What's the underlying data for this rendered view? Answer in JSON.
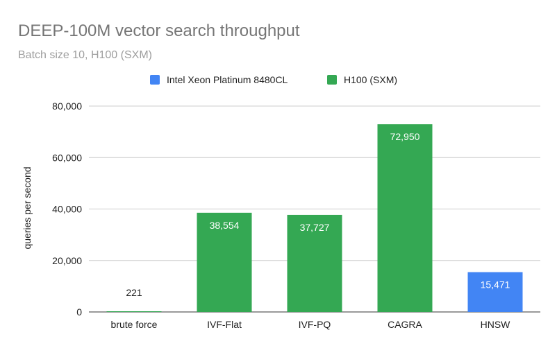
{
  "chart_data": {
    "type": "bar",
    "title": "DEEP-100M vector search throughput",
    "subtitle": "Batch size 10, H100 (SXM)",
    "xlabel": "",
    "ylabel": "queries per second",
    "ylim": [
      0,
      80000
    ],
    "yticks": [
      0,
      20000,
      40000,
      60000,
      80000
    ],
    "ytick_labels": [
      "0",
      "20,000",
      "40,000",
      "60,000",
      "80,000"
    ],
    "grid": true,
    "legend_position": "top",
    "categories": [
      "brute force",
      "IVF-Flat",
      "IVF-PQ",
      "CAGRA",
      "HNSW"
    ],
    "series": [
      {
        "name": "Intel Xeon Platinum 8480CL",
        "color": "#4285f4",
        "values": [
          null,
          null,
          null,
          null,
          15471
        ],
        "labels": [
          "",
          "",
          "",
          "",
          "15,471"
        ]
      },
      {
        "name": "H100 (SXM)",
        "color": "#34a853",
        "values": [
          221,
          38554,
          37727,
          72950,
          null
        ],
        "labels": [
          "221",
          "38,554",
          "37,727",
          "72,950",
          ""
        ]
      }
    ]
  }
}
